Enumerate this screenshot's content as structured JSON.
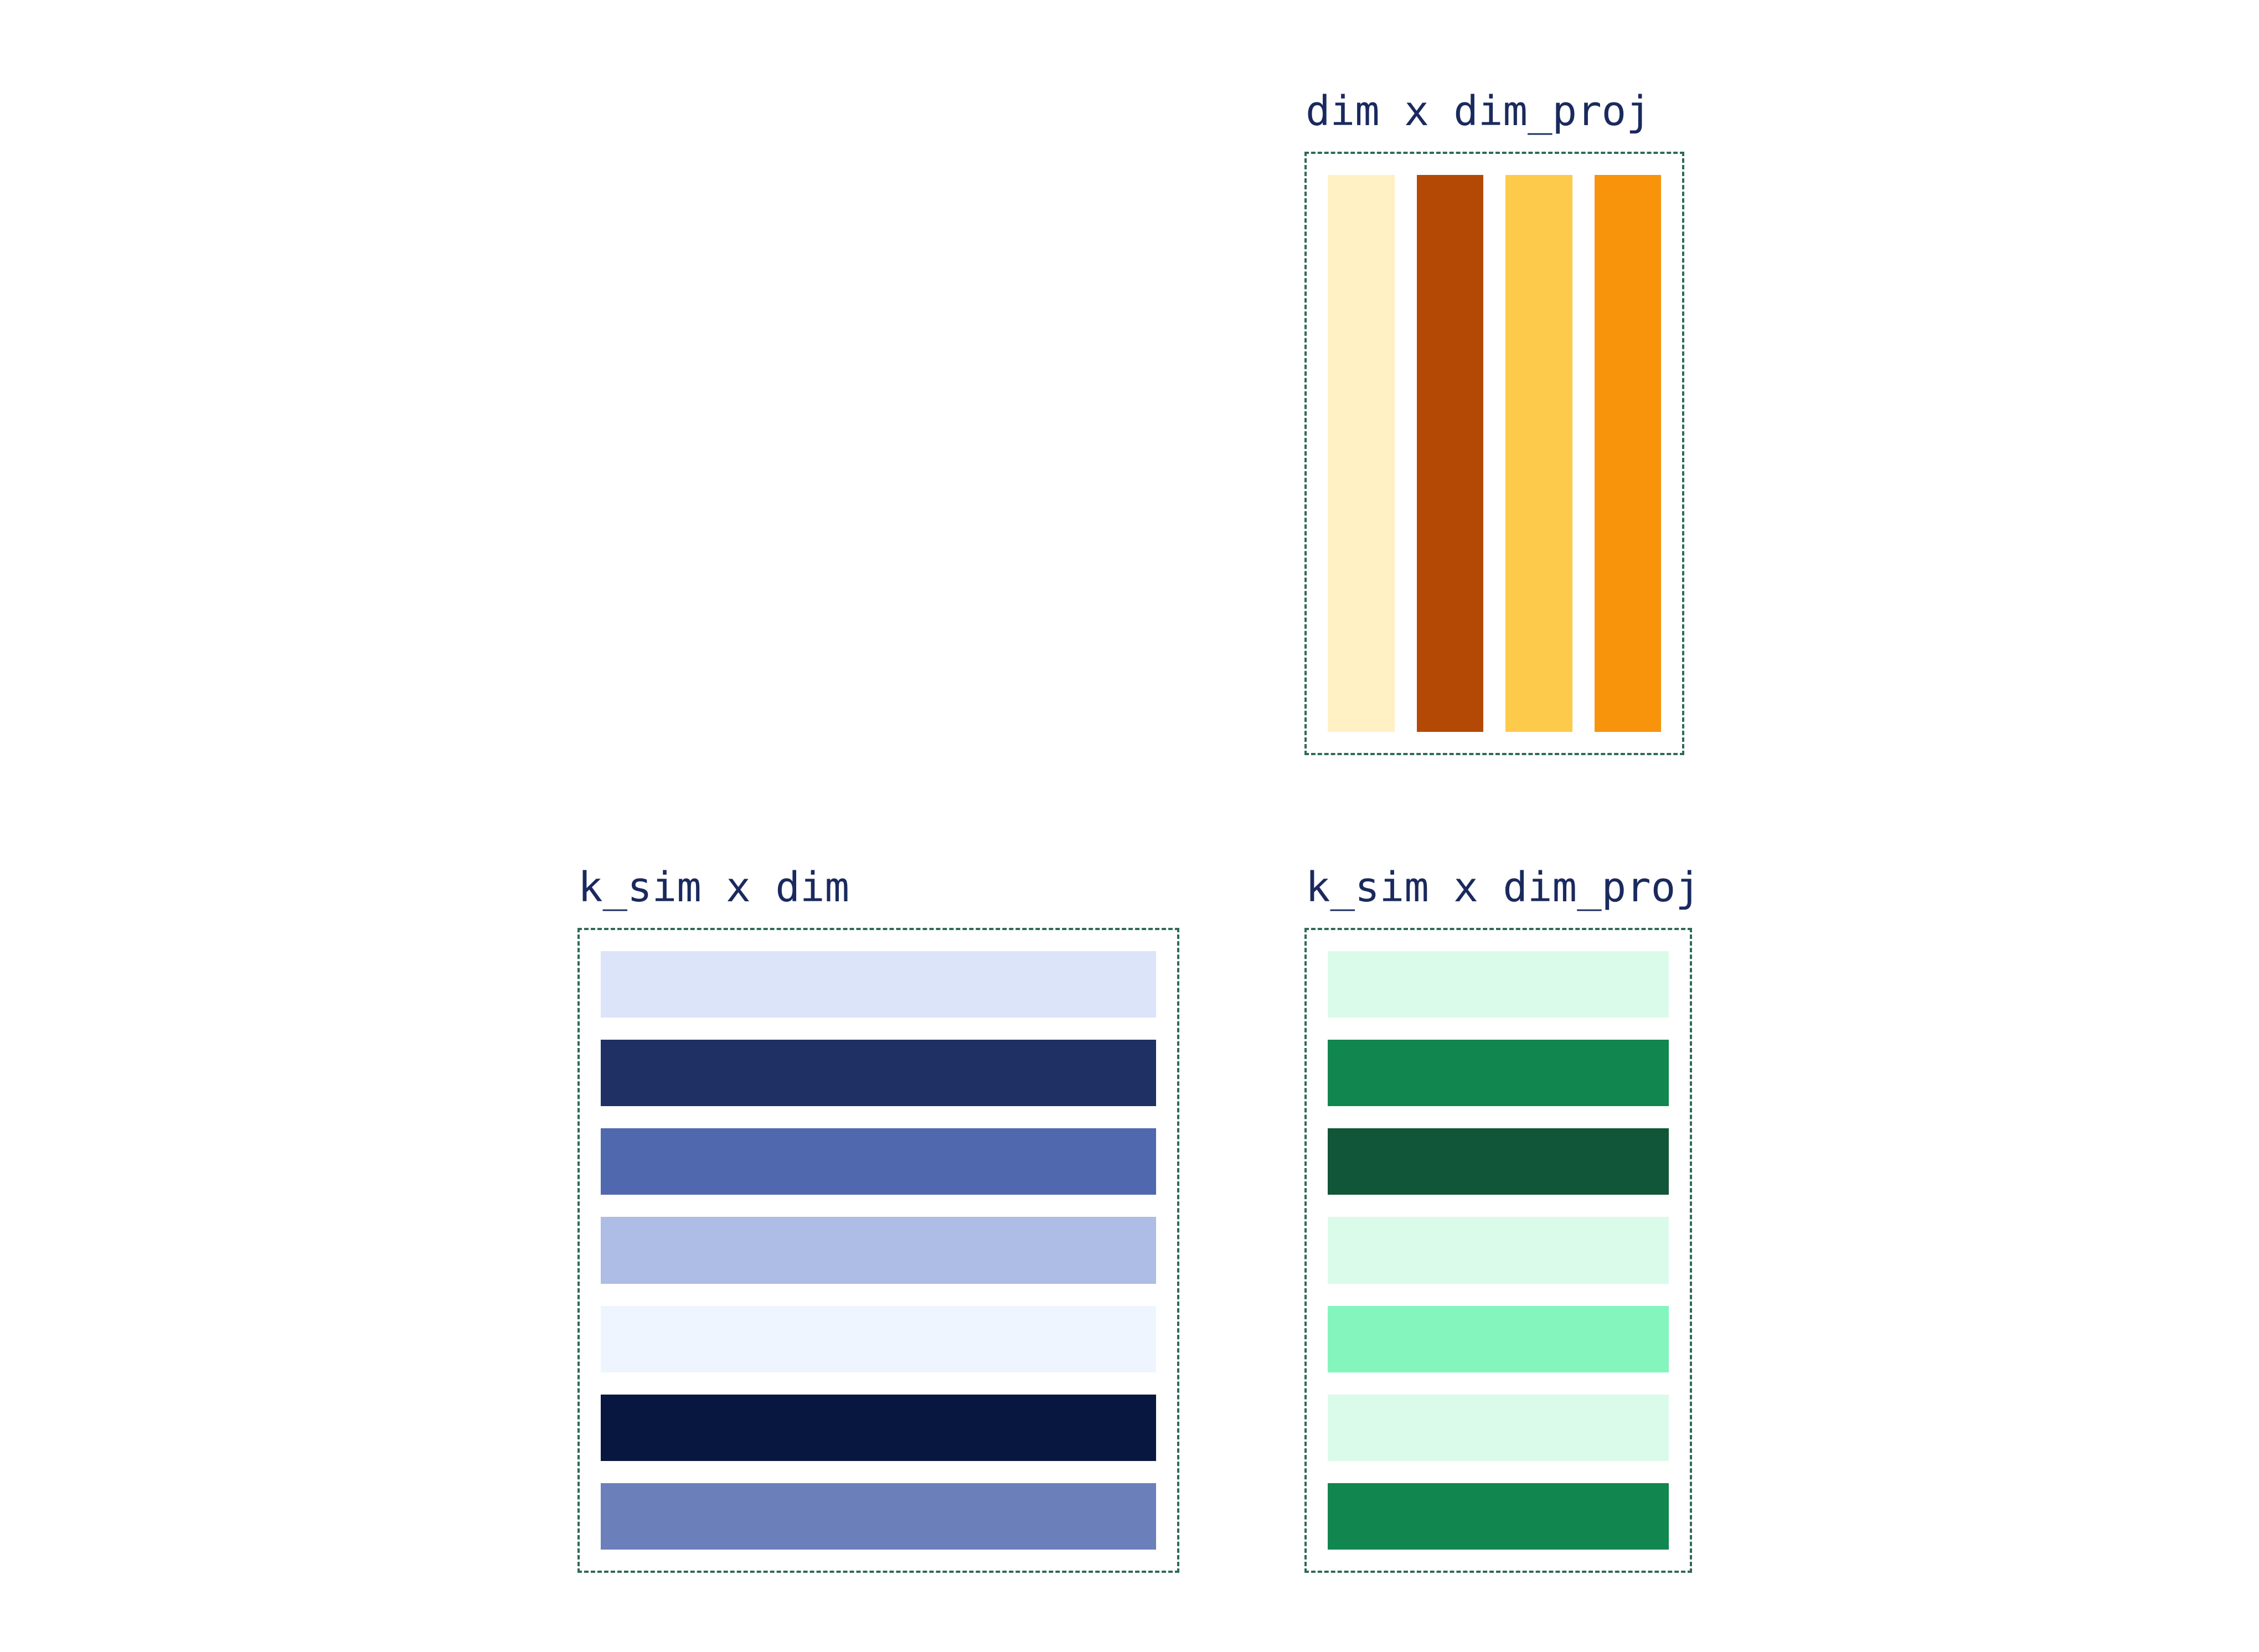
{
  "matrices": {
    "proj": {
      "label": "dim x dim_proj",
      "orientation": "columns",
      "colors": [
        "#fff1c4",
        "#b44905",
        "#fdca4b",
        "#f8930c"
      ]
    },
    "input": {
      "label": "k_sim x dim",
      "orientation": "rows",
      "colors": [
        "#dbe4f8",
        "#1f3064",
        "#5068ae",
        "#adbde5",
        "#eff5fe",
        "#08173f",
        "#6b7fbb"
      ]
    },
    "output": {
      "label": "k_sim x dim_proj",
      "orientation": "rows",
      "colors": [
        "#dafbea",
        "#11864f",
        "#115638",
        "#dafbea",
        "#84f5bd",
        "#dafbea",
        "#11864f"
      ]
    }
  }
}
